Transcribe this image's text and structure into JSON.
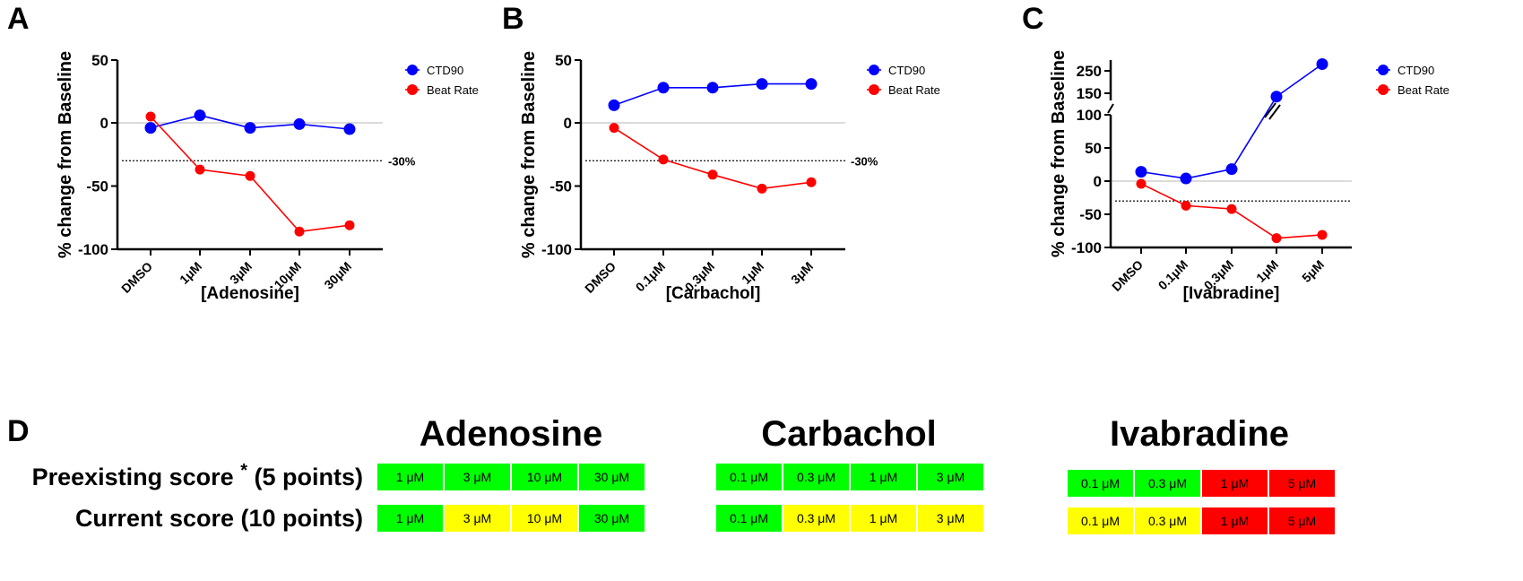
{
  "chart_data": [
    {
      "panel": "A",
      "type": "line",
      "categories": [
        "DMSO",
        "1μM",
        "3μM",
        "10μM",
        "30μM"
      ],
      "xlabel": "[Adenosine]",
      "ylabel": "% change from Baseline",
      "ylim": [
        -100,
        50
      ],
      "yticks": [
        50,
        0,
        -50,
        -100
      ],
      "threshold": {
        "value": -30,
        "label": "-30%"
      },
      "series": [
        {
          "name": "CTD90",
          "color": "#0000ff",
          "values": [
            -4,
            6,
            -4,
            -1,
            -5
          ]
        },
        {
          "name": "Beat Rate",
          "color": "#ff0000",
          "values": [
            5,
            -37,
            -42,
            -86,
            -81
          ]
        }
      ],
      "legend": "right"
    },
    {
      "panel": "B",
      "type": "line",
      "categories": [
        "DMSO",
        "0.1μM",
        "0.3μM",
        "1μM",
        "3μM"
      ],
      "xlabel": "[Carbachol]",
      "ylabel": "% change from Baseline",
      "ylim": [
        -100,
        50
      ],
      "yticks": [
        50,
        0,
        -50,
        -100
      ],
      "threshold": {
        "value": -30,
        "label": "-30%"
      },
      "series": [
        {
          "name": "CTD90",
          "color": "#0000ff",
          "values": [
            14,
            28,
            28,
            31,
            31
          ]
        },
        {
          "name": "Beat Rate",
          "color": "#ff0000",
          "values": [
            -4,
            -29,
            -41,
            -52,
            -47
          ]
        }
      ],
      "legend": "right"
    },
    {
      "panel": "C",
      "type": "line",
      "categories": [
        "DMSO",
        "0.1μM",
        "0.3μM",
        "1μM",
        "5μM"
      ],
      "xlabel": "[Ivabradine]",
      "ylabel": "% change from Baseline",
      "ylim": [
        -100,
        280
      ],
      "axis_break": [
        100,
        150
      ],
      "yticks": [
        250,
        150,
        100,
        50,
        0,
        -50,
        -100
      ],
      "threshold": {
        "value": -30,
        "label": ""
      },
      "series": [
        {
          "name": "CTD90",
          "color": "#0000ff",
          "values": [
            14,
            4,
            18,
            135,
            280
          ]
        },
        {
          "name": "Beat Rate",
          "color": "#ff0000",
          "values": [
            -4,
            -37,
            -42,
            -86,
            -81
          ]
        }
      ],
      "legend": "right"
    }
  ],
  "panel_d": {
    "label": "D",
    "row_labels": {
      "preexisting": "Preexisting score",
      "preexisting_mark": "*",
      "preexisting_points": "(5 points)",
      "current": "Current score (10 points)"
    },
    "colors": {
      "green": "#00ff00",
      "yellow": "#ffff00",
      "red": "#ff0000"
    },
    "drugs": [
      {
        "name": "Adenosine",
        "preexisting": [
          {
            "dose": "1 μM",
            "color": "green"
          },
          {
            "dose": "3 μM",
            "color": "green"
          },
          {
            "dose": "10 μM",
            "color": "green"
          },
          {
            "dose": "30 μM",
            "color": "green"
          }
        ],
        "current": [
          {
            "dose": "1 μM",
            "color": "green"
          },
          {
            "dose": "3 μM",
            "color": "yellow"
          },
          {
            "dose": "10 μM",
            "color": "yellow"
          },
          {
            "dose": "30 μM",
            "color": "green"
          }
        ]
      },
      {
        "name": "Carbachol",
        "preexisting": [
          {
            "dose": "0.1 μM",
            "color": "green"
          },
          {
            "dose": "0.3 μM",
            "color": "green"
          },
          {
            "dose": "1 μM",
            "color": "green"
          },
          {
            "dose": "3 μM",
            "color": "green"
          }
        ],
        "current": [
          {
            "dose": "0.1 μM",
            "color": "green"
          },
          {
            "dose": "0.3 μM",
            "color": "yellow"
          },
          {
            "dose": "1 μM",
            "color": "yellow"
          },
          {
            "dose": "3 μM",
            "color": "yellow"
          }
        ]
      },
      {
        "name": "Ivabradine",
        "preexisting": [
          {
            "dose": "0.1 μM",
            "color": "green"
          },
          {
            "dose": "0.3 μM",
            "color": "green"
          },
          {
            "dose": "1 μM",
            "color": "red"
          },
          {
            "dose": "5 μM",
            "color": "red"
          }
        ],
        "current": [
          {
            "dose": "0.1 μM",
            "color": "yellow"
          },
          {
            "dose": "0.3 μM",
            "color": "yellow"
          },
          {
            "dose": "1 μM",
            "color": "red"
          },
          {
            "dose": "5 μM",
            "color": "red"
          }
        ]
      }
    ]
  }
}
